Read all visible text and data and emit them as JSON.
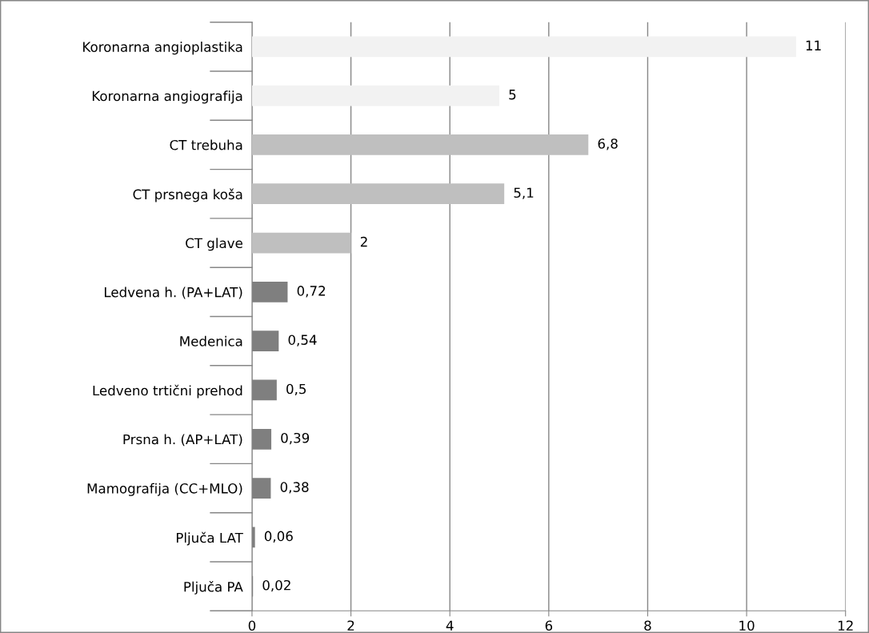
{
  "chart_data": {
    "type": "bar",
    "orientation": "horizontal",
    "categories": [
      "Koronarna angioplastika",
      "Koronarna angiografija",
      "CT trebuha",
      "CT prsnega koša",
      "CT glave",
      "Ledvena h. (PA+LAT)",
      "Medenica",
      "Ledveno trtični prehod",
      "Prsna h. (AP+LAT)",
      "Mamografija (CC+MLO)",
      "Pljuča LAT",
      "Pljuča PA"
    ],
    "values": [
      11,
      5,
      6.8,
      5.1,
      2,
      0.72,
      0.54,
      0.5,
      0.39,
      0.38,
      0.06,
      0.02
    ],
    "colors": [
      "#f2f2f2",
      "#f2f2f2",
      "#bfbfbf",
      "#bfbfbf",
      "#bfbfbf",
      "#7f7f7f",
      "#7f7f7f",
      "#7f7f7f",
      "#7f7f7f",
      "#7f7f7f",
      "#7f7f7f",
      "#7f7f7f"
    ],
    "value_labels": [
      "11",
      "5",
      "6,8",
      "5,1",
      "2",
      "0,72",
      "0,54",
      "0,5",
      "0,39",
      "0,38",
      "0,06",
      "0,02"
    ],
    "xlim": [
      0,
      12
    ],
    "xticks": [
      0,
      2,
      4,
      6,
      8,
      10,
      12
    ],
    "grid": "x",
    "legend": false
  }
}
